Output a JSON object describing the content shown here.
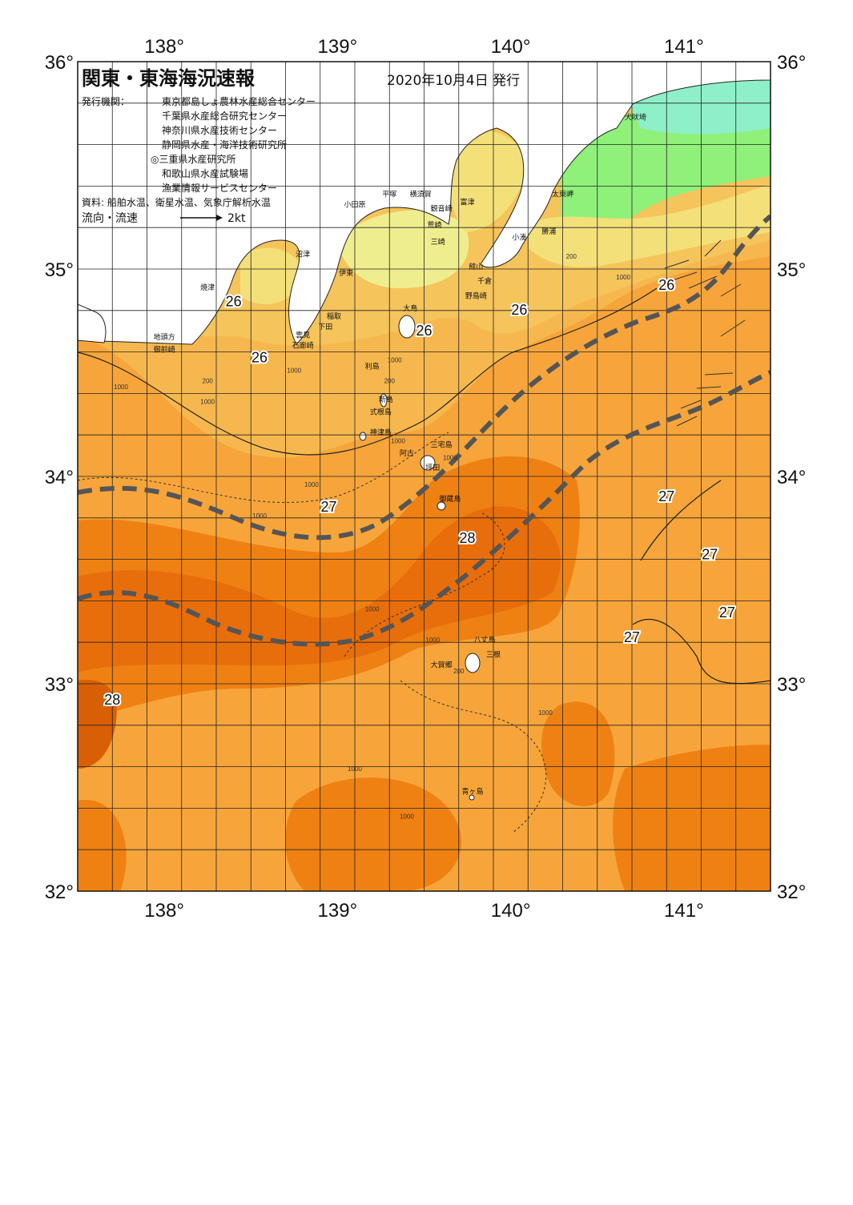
{
  "map": {
    "title": "関東・東海海況速報",
    "issue_date": "2020年10月4日 発行",
    "issuers_label": "発行機関：",
    "issuers": [
      "東京都島しょ農林水産総合センター",
      "千葉県水産総合研究センター",
      "神奈川県水産技術センター",
      "静岡県水産・海洋技術研究所",
      "◎三重県水産研究所",
      "和歌山県水産試験場",
      "漁業情報サービスセンター"
    ],
    "source": "資料: 船舶水温、衛星水温、気象庁解析水温",
    "current_label": "流向・流速",
    "current_scale": "2kt",
    "lon_labels": [
      "138°",
      "139°",
      "140°",
      "141°"
    ],
    "lat_labels": [
      "36°",
      "35°",
      "34°",
      "33°",
      "32°"
    ],
    "lon_range": [
      137.5,
      141.5
    ],
    "lat_range": [
      32,
      36
    ],
    "isotherm_labels": [
      {
        "text": "26",
        "lon": 138.4,
        "lat": 34.82
      },
      {
        "text": "26",
        "lon": 138.55,
        "lat": 34.55
      },
      {
        "text": "26",
        "lon": 139.5,
        "lat": 34.68
      },
      {
        "text": "26",
        "lon": 140.05,
        "lat": 34.78
      },
      {
        "text": "26",
        "lon": 140.9,
        "lat": 34.9
      },
      {
        "text": "27",
        "lon": 138.95,
        "lat": 33.83
      },
      {
        "text": "28",
        "lon": 139.75,
        "lat": 33.68
      },
      {
        "text": "27",
        "lon": 140.9,
        "lat": 33.88
      },
      {
        "text": "27",
        "lon": 141.15,
        "lat": 33.6
      },
      {
        "text": "27",
        "lon": 141.25,
        "lat": 33.32
      },
      {
        "text": "27",
        "lon": 140.7,
        "lat": 33.2
      },
      {
        "text": "28",
        "lon": 137.7,
        "lat": 32.9
      }
    ],
    "place_names": [
      {
        "text": "犬吠埼",
        "lon": 140.72,
        "lat": 35.72
      },
      {
        "text": "太東岬",
        "lon": 140.3,
        "lat": 35.35
      },
      {
        "text": "勝浦",
        "lon": 140.22,
        "lat": 35.17
      },
      {
        "text": "小湊",
        "lon": 140.05,
        "lat": 35.14
      },
      {
        "text": "富津",
        "lon": 139.75,
        "lat": 35.31
      },
      {
        "text": "横須賀",
        "lon": 139.48,
        "lat": 35.35
      },
      {
        "text": "観音崎",
        "lon": 139.6,
        "lat": 35.28
      },
      {
        "text": "平塚",
        "lon": 139.3,
        "lat": 35.35
      },
      {
        "text": "小田原",
        "lon": 139.1,
        "lat": 35.3
      },
      {
        "text": "荒崎",
        "lon": 139.56,
        "lat": 35.2
      },
      {
        "text": "三崎",
        "lon": 139.58,
        "lat": 35.12
      },
      {
        "text": "館山",
        "lon": 139.8,
        "lat": 35.0
      },
      {
        "text": "千倉",
        "lon": 139.85,
        "lat": 34.93
      },
      {
        "text": "野島崎",
        "lon": 139.8,
        "lat": 34.86
      },
      {
        "text": "沼津",
        "lon": 138.8,
        "lat": 35.06
      },
      {
        "text": "伊東",
        "lon": 139.05,
        "lat": 34.97
      },
      {
        "text": "焼津",
        "lon": 138.25,
        "lat": 34.9
      },
      {
        "text": "大島",
        "lon": 139.42,
        "lat": 34.8
      },
      {
        "text": "稲取",
        "lon": 138.98,
        "lat": 34.76
      },
      {
        "text": "下田",
        "lon": 138.93,
        "lat": 34.71
      },
      {
        "text": "雲見",
        "lon": 138.8,
        "lat": 34.67
      },
      {
        "text": "石廊崎",
        "lon": 138.8,
        "lat": 34.62
      },
      {
        "text": "地頭方",
        "lon": 138.0,
        "lat": 34.66
      },
      {
        "text": "御前崎",
        "lon": 138.0,
        "lat": 34.6
      },
      {
        "text": "利島",
        "lon": 139.2,
        "lat": 34.52
      },
      {
        "text": "新島",
        "lon": 139.28,
        "lat": 34.36
      },
      {
        "text": "式根島",
        "lon": 139.25,
        "lat": 34.3
      },
      {
        "text": "神津島",
        "lon": 139.25,
        "lat": 34.2
      },
      {
        "text": "三宅島",
        "lon": 139.6,
        "lat": 34.14
      },
      {
        "text": "阿古",
        "lon": 139.4,
        "lat": 34.1
      },
      {
        "text": "坪田",
        "lon": 139.55,
        "lat": 34.03
      },
      {
        "text": "御蔵島",
        "lon": 139.65,
        "lat": 33.88
      },
      {
        "text": "八丈島",
        "lon": 139.85,
        "lat": 33.2
      },
      {
        "text": "三根",
        "lon": 139.9,
        "lat": 33.13
      },
      {
        "text": "大賀郷",
        "lon": 139.6,
        "lat": 33.08
      },
      {
        "text": "青ヶ島",
        "lon": 139.78,
        "lat": 32.47
      }
    ],
    "depth_labels": [
      {
        "text": "200",
        "lon": 138.25,
        "lat": 34.45
      },
      {
        "text": "1000",
        "lon": 138.25,
        "lat": 34.35
      },
      {
        "text": "1000",
        "lon": 137.75,
        "lat": 34.42
      },
      {
        "text": "1000",
        "lon": 138.75,
        "lat": 34.5
      },
      {
        "text": "1000",
        "lon": 139.33,
        "lat": 34.55
      },
      {
        "text": "200",
        "lon": 139.3,
        "lat": 34.45
      },
      {
        "text": "1000",
        "lon": 139.65,
        "lat": 34.08
      },
      {
        "text": "1000",
        "lon": 139.35,
        "lat": 34.16
      },
      {
        "text": "1000",
        "lon": 138.85,
        "lat": 33.95
      },
      {
        "text": "1000",
        "lon": 138.55,
        "lat": 33.8
      },
      {
        "text": "1000",
        "lon": 139.2,
        "lat": 33.35
      },
      {
        "text": "1000",
        "lon": 139.55,
        "lat": 33.2
      },
      {
        "text": "200",
        "lon": 139.7,
        "lat": 33.05
      },
      {
        "text": "1000",
        "lon": 140.2,
        "lat": 32.85
      },
      {
        "text": "1000",
        "lon": 139.1,
        "lat": 32.58
      },
      {
        "text": "1000",
        "lon": 139.4,
        "lat": 32.35
      },
      {
        "text": "200",
        "lon": 140.35,
        "lat": 35.05
      },
      {
        "text": "1000",
        "lon": 140.65,
        "lat": 34.95
      }
    ],
    "colors": {
      "sst_26": "#f5c45b",
      "sst_26_5": "#f7a53a",
      "sst_27": "#f5981f",
      "sst_27_5": "#ef8113",
      "sst_28": "#e86e0c",
      "sst_coastal_warm": "#f4e079",
      "sst_coastal": "#efee8e",
      "sst_cool_green": "#8ff07a",
      "sst_cooler_cyan": "#8ef0c8",
      "land": "#ffffff",
      "kuroshio_axis": "#555555",
      "grid": "#222222"
    }
  }
}
